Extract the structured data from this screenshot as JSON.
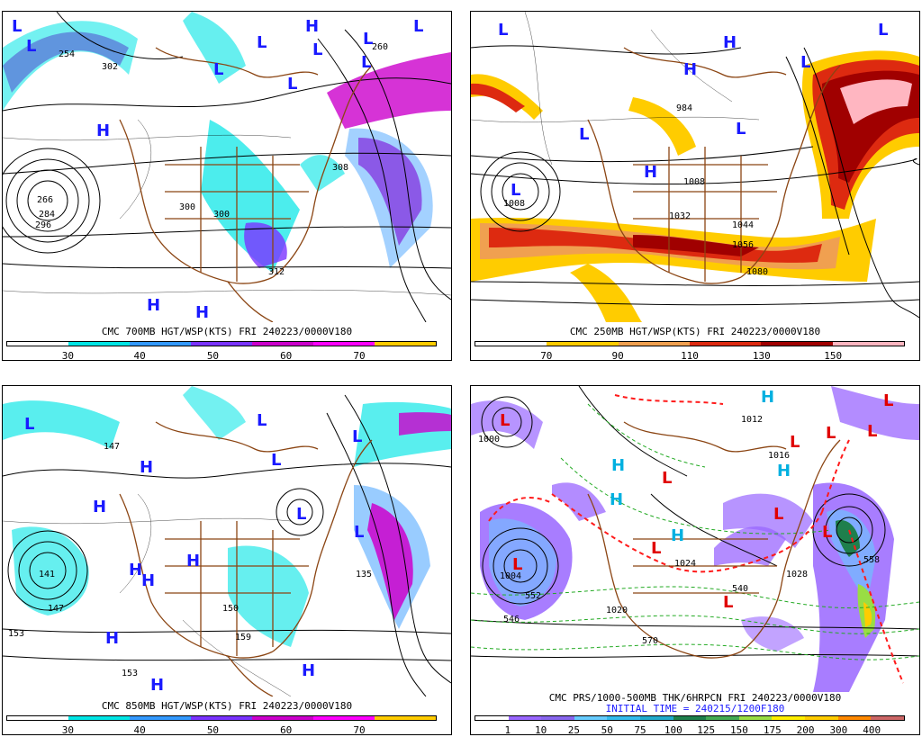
{
  "panels": {
    "tl": {
      "title": "CMC 700MB HGT/WSP(KTS) FRI 240223/0000V180",
      "ticks": [
        "30",
        "40",
        "50",
        "60",
        "70"
      ],
      "colors": [
        "#ffffff",
        "#00e5e5",
        "#3399ff",
        "#7a33ff",
        "#cc00cc",
        "#ff00ff",
        "#ffcc00"
      ],
      "centers": [
        "L",
        "L",
        "L",
        "H",
        "L",
        "L",
        "L",
        "L",
        "H",
        "L",
        "L",
        "H",
        "H"
      ],
      "contour_labels": [
        "254",
        "302",
        "266",
        "284",
        "260",
        "300",
        "312",
        "300",
        "296",
        "308"
      ]
    },
    "tr": {
      "title": "CMC 250MB HGT/WSP(KTS) FRI 240223/0000V180",
      "ticks": [
        "70",
        "90",
        "110",
        "130",
        "150"
      ],
      "colors": [
        "#ffffff",
        "#ffcc00",
        "#f0a050",
        "#dd2a10",
        "#a00000",
        "#ffb6c1"
      ],
      "centers": [
        "L",
        "H",
        "L",
        "L",
        "H",
        "L",
        "L",
        "H",
        "L"
      ],
      "contour_labels": [
        "984",
        "1008",
        "1008",
        "1032",
        "1044",
        "1056",
        "1080"
      ]
    },
    "bl": {
      "title": "CMC 850MB HGT/WSP(KTS) FRI 240223/0000V180",
      "ticks": [
        "30",
        "40",
        "50",
        "60",
        "70"
      ],
      "colors": [
        "#ffffff",
        "#00e5e5",
        "#3399ff",
        "#7a33ff",
        "#cc00cc",
        "#ff00ff",
        "#ffcc00"
      ],
      "centers": [
        "L",
        "H",
        "L",
        "H",
        "L",
        "L",
        "H",
        "H",
        "H",
        "L",
        "H",
        "H",
        "L",
        "H"
      ],
      "contour_labels": [
        "147",
        "153",
        "141",
        "147",
        "153",
        "150",
        "159",
        "135"
      ]
    },
    "br": {
      "title": "CMC PRS/1000-500MB THK/6HRPCN FRI 240223/0000V180",
      "subtitle": "INITIAL TIME = 240215/1200F180",
      "ticks": [
        "1",
        "10",
        "25",
        "50",
        "75",
        "100",
        "125",
        "150",
        "175",
        "200",
        "300",
        "400"
      ],
      "colors": [
        "#ffffff",
        "#9966ff",
        "#8866ee",
        "#66ccff",
        "#33bbee",
        "#22aacc",
        "#1e7f4c",
        "#44aa55",
        "#99dd44",
        "#ffee00",
        "#ffcc00",
        "#ff8800",
        "#cc6666"
      ],
      "centers": [
        "L",
        "H",
        "L",
        "H",
        "H",
        "L",
        "L",
        "L",
        "H",
        "L",
        "L",
        "L",
        "H",
        "L",
        "L",
        "L"
      ],
      "contour_labels": [
        "1000",
        "1004",
        "1012",
        "1016",
        "1020",
        "1024",
        "1028",
        "540",
        "546",
        "552",
        "558",
        "570"
      ]
    }
  }
}
